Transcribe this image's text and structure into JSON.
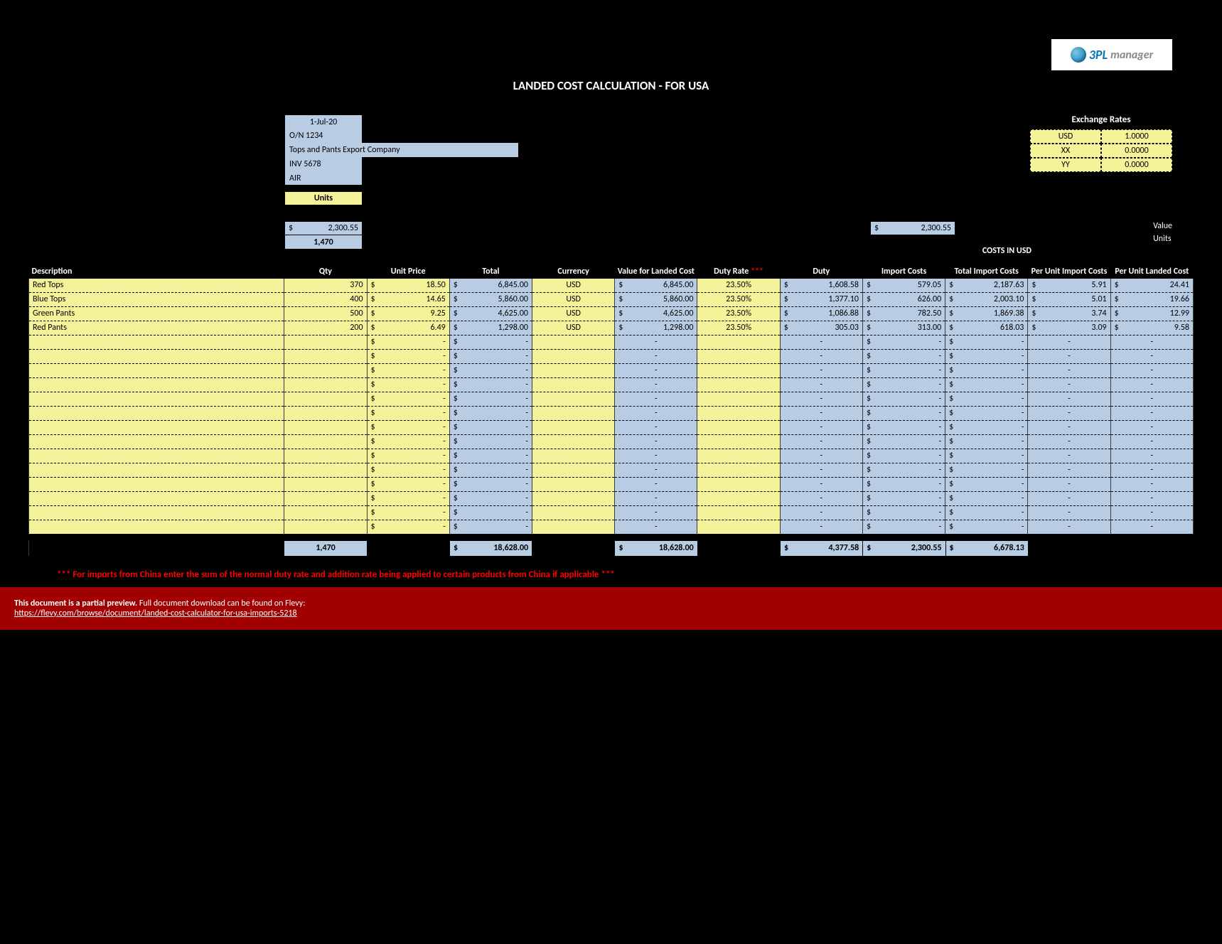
{
  "logo": {
    "prefix": "3PL",
    "suffix": "manager"
  },
  "page_title": "LANDED COST CALCULATION - FOR USA",
  "header": {
    "date": "1-Jul-20",
    "order_no": "O/N 1234",
    "company": "Tops and Pants Export Company",
    "invoice": "INV 5678",
    "mode": "AIR",
    "units_label": "Units",
    "import_cost_total": "2,300.55",
    "unit_total": "1,470"
  },
  "exchange": {
    "title": "Exchange Rates",
    "rows": [
      {
        "code": "USD",
        "rate": "1.0000"
      },
      {
        "code": "XX",
        "rate": "0.0000"
      },
      {
        "code": "YY",
        "rate": "0.0000"
      }
    ]
  },
  "costs_usd_label": "COSTS IN USD",
  "side_labels": {
    "value": "Value",
    "units": "Units"
  },
  "side_import_cost": "2,300.55",
  "columns": {
    "desc": "Description",
    "qty": "Qty",
    "unit_price": "Unit Price",
    "total": "Total",
    "currency": "Currency",
    "vflc": "Value for Landed Cost",
    "duty_rate": "Duty Rate",
    "duty_rate_ast": "***",
    "duty": "Duty",
    "import_costs": "Import Costs",
    "tic": "Total Import Costs",
    "puic": "Per Unit Import Costs",
    "pulc": "Per Unit Landed Cost"
  },
  "rows": [
    {
      "desc": "Red Tops",
      "qty": "370",
      "unit_price": "18.50",
      "total": "6,845.00",
      "currency": "USD",
      "vflc": "6,845.00",
      "duty_rate": "23.50%",
      "duty": "1,608.58",
      "import_costs": "579.05",
      "tic": "2,187.63",
      "puic": "5.91",
      "pulc": "24.41"
    },
    {
      "desc": "Blue Tops",
      "qty": "400",
      "unit_price": "14.65",
      "total": "5,860.00",
      "currency": "USD",
      "vflc": "5,860.00",
      "duty_rate": "23.50%",
      "duty": "1,377.10",
      "import_costs": "626.00",
      "tic": "2,003.10",
      "puic": "5.01",
      "pulc": "19.66"
    },
    {
      "desc": "Green Pants",
      "qty": "500",
      "unit_price": "9.25",
      "total": "4,625.00",
      "currency": "USD",
      "vflc": "4,625.00",
      "duty_rate": "23.50%",
      "duty": "1,086.88",
      "import_costs": "782.50",
      "tic": "1,869.38",
      "puic": "3.74",
      "pulc": "12.99"
    },
    {
      "desc": "Red Pants",
      "qty": "200",
      "unit_price": "6.49",
      "total": "1,298.00",
      "currency": "USD",
      "vflc": "1,298.00",
      "duty_rate": "23.50%",
      "duty": "305.03",
      "import_costs": "313.00",
      "tic": "618.03",
      "puic": "3.09",
      "pulc": "9.58"
    }
  ],
  "empty_row_count": 14,
  "totals": {
    "qty": "1,470",
    "total": "18,628.00",
    "vflc": "18,628.00",
    "duty": "4,377.58",
    "import_costs": "2,300.55",
    "tic": "6,678.13"
  },
  "footnote": "*** For imports from China enter the sum of the normal duty rate and addition rate being applied to certain products from China if applicable ***",
  "preview": {
    "bold": "This document is a partial preview.",
    "rest": " Full document download can be found on Flevy:",
    "link": "https://flevy.com/browse/document/landed-cost-calculator-for-usa-imports-5218"
  },
  "colors": {
    "yellow": "#f5f39a",
    "blue": "#b8cce4",
    "bg": "#000000",
    "red_bar": "#a00000",
    "text_light": "#ffffff"
  }
}
